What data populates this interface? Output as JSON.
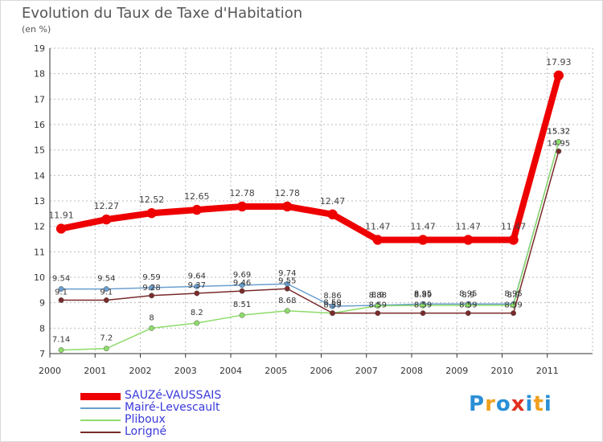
{
  "title": "Evolution du Taux de Taxe d'Habitation",
  "subtitle": "(en %)",
  "logo": {
    "text": "Proxiti",
    "colors": [
      "#2a8fd6",
      "#f0a020",
      "#2a8fd6",
      "#e03020",
      "#2a8fd6",
      "#f0a020",
      "#2a8fd6"
    ]
  },
  "chart_data": {
    "type": "line",
    "x": [
      "2000",
      "2001",
      "2002",
      "2003",
      "2004",
      "2005",
      "2006",
      "2007",
      "2008",
      "2009",
      "2010",
      "2011"
    ],
    "ylim": [
      7,
      19
    ],
    "yticks": [
      "7",
      "8",
      "9",
      "10",
      "11",
      "12",
      "13",
      "14",
      "15",
      "16",
      "17",
      "18",
      "19"
    ],
    "grid": true,
    "legend_position": "bottom-left",
    "series": [
      {
        "name": "SAUZé-VAUSSAIS",
        "color": "#ee0000",
        "width": 8,
        "values": [
          11.91,
          12.27,
          12.52,
          12.65,
          12.78,
          12.78,
          12.47,
          11.47,
          11.47,
          11.47,
          11.47,
          17.93
        ],
        "labels": [
          "11.91",
          "12.27",
          "12.52",
          "12.65",
          "12.78",
          "12.78",
          "12.47",
          "11.47",
          "11.47",
          "11.47",
          "11.47",
          "17.93"
        ]
      },
      {
        "name": "Mairé-Levescault",
        "color": "#6a9fd0",
        "width": 1.5,
        "values": [
          9.54,
          9.54,
          9.59,
          9.64,
          9.69,
          9.74,
          8.86,
          8.9,
          8.95,
          8.95,
          8.95,
          15.32
        ],
        "labels": [
          "9.54",
          "9.54",
          "9.59",
          "9.64",
          "9.69",
          "9.74",
          "8.86",
          "8.9",
          "8.95",
          "8.95",
          "8.95",
          "15.32"
        ]
      },
      {
        "name": "Pliboux",
        "color": "#8edc6a",
        "width": 1.5,
        "values": [
          7.14,
          7.2,
          8,
          8.2,
          8.51,
          8.68,
          8.59,
          8.88,
          8.89,
          8.9,
          8.9,
          15.32
        ],
        "labels": [
          "7.14",
          "7.2",
          "8",
          "8.2",
          "8.51",
          "8.68",
          "8.59",
          "8.88",
          "8.89",
          "8.9",
          "8.9",
          "15.32"
        ]
      },
      {
        "name": "Lorigné",
        "color": "#7a2a2a",
        "width": 1.5,
        "values": [
          9.1,
          9.1,
          9.28,
          9.37,
          9.46,
          9.55,
          8.59,
          8.59,
          8.59,
          8.59,
          8.59,
          14.95
        ],
        "labels": [
          "9.1",
          "9.1",
          "9.28",
          "9.37",
          "9.46",
          "9.55",
          "8.59",
          "8.59",
          "8.59",
          "8.59",
          "8.59",
          "14.95"
        ]
      }
    ]
  }
}
